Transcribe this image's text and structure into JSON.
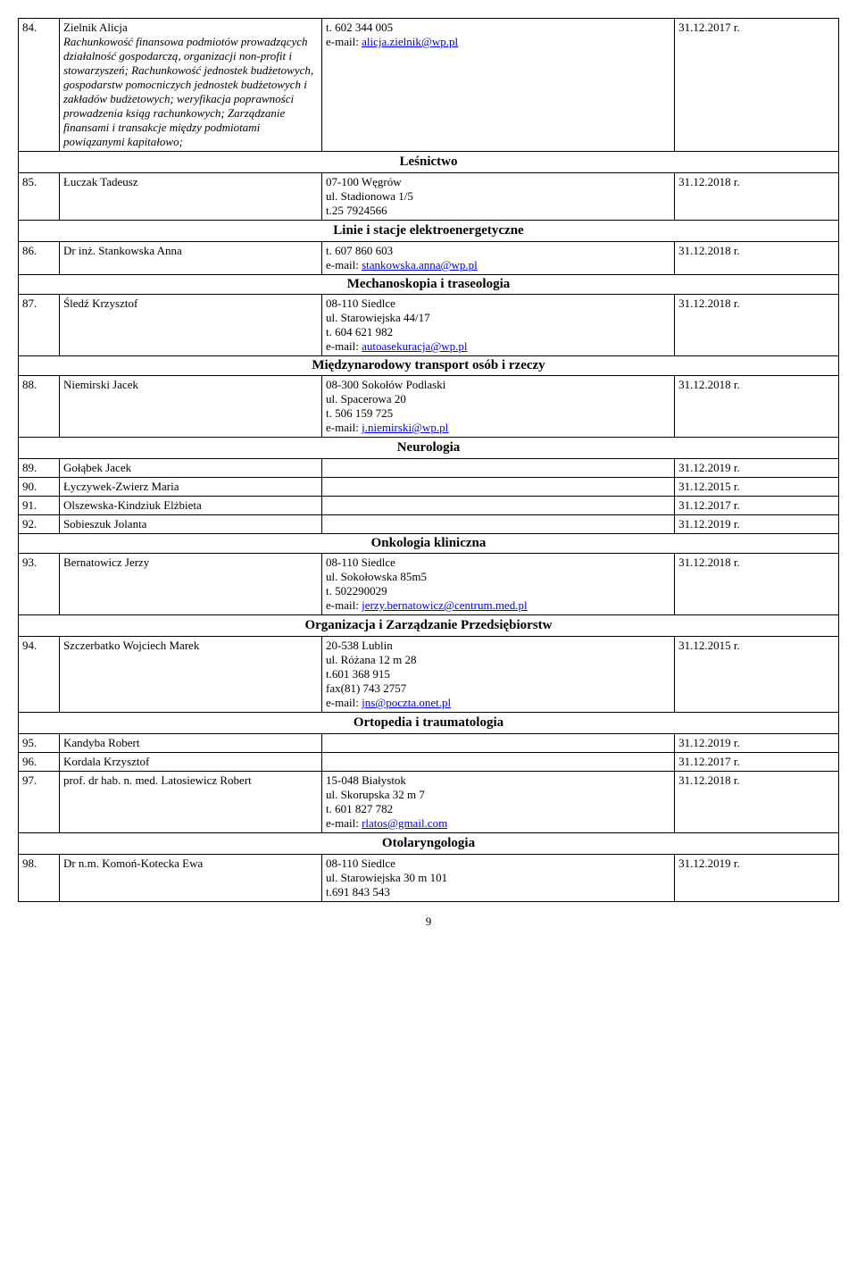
{
  "rows": [
    {
      "num": "84.",
      "name_main": "Zielnik Alicja",
      "name_detail_italic": "Rachunkowość finansowa podmiotów prowadzących działalność gospodarczą, organizacji non-profit i stowarzyszeń; Rachunkowość jednostek budżetowych, gospodarstw pomocniczych jednostek budżetowych i zakładów budżetowych; weryfikacja poprawności prowadzenia ksiąg rachunkowych; Zarządzanie finansami i transakcje między podmiotami powiązanymi kapitałowo;",
      "contact_lines": [
        "t. 602 344 005",
        "e-mail: "
      ],
      "contact_email": "alicja.zielnik@wp.pl",
      "date": "31.12.2017 r."
    }
  ],
  "sections": [
    {
      "title": "Leśnictwo",
      "rows": [
        {
          "num": "85.",
          "name": "Łuczak Tadeusz",
          "contact_lines": [
            "07-100 Węgrów",
            "ul. Stadionowa 1/5",
            "t.25 7924566"
          ],
          "date": "31.12.2018 r."
        }
      ]
    },
    {
      "title": "Linie i stacje elektroenergetyczne",
      "rows": [
        {
          "num": "86.",
          "name": "Dr inż. Stankowska Anna",
          "contact_lines": [
            "t. 607 860 603",
            "e-mail: "
          ],
          "email": "stankowska.anna@wp.pl",
          "date": "31.12.2018 r."
        }
      ],
      "subsections": [
        {
          "title": "Mechanoskopia i traseologia",
          "rows": [
            {
              "num": "87.",
              "name": "Śledź Krzysztof",
              "contact_lines": [
                "08-110 Siedlce",
                "ul. Starowiejska 44/17",
                "t. 604 621 982",
                "e-mail: "
              ],
              "email": "autoasekuracja@wp.pl",
              "date": "31.12.2018 r."
            }
          ]
        },
        {
          "title": "Międzynarodowy transport osób i rzeczy",
          "rows": [
            {
              "num": "88.",
              "name": "Niemirski Jacek",
              "contact_lines": [
                "08-300 Sokołów Podlaski",
                "ul. Spacerowa 20",
                "t. 506 159 725",
                "e-mail: "
              ],
              "email": "j.niemirski@wp.pl",
              "date": "31.12.2018 r."
            }
          ]
        }
      ]
    },
    {
      "title": "Neurologia",
      "rows": [
        {
          "num": "89.",
          "name": "Gołąbek Jacek",
          "contact_lines": [],
          "date": "31.12.2019 r."
        },
        {
          "num": "90.",
          "name": "Łyczywek-Zwierz Maria",
          "contact_lines": [],
          "date": "31.12.2015 r."
        },
        {
          "num": "91.",
          "name": "Olszewska-Kindziuk Elżbieta",
          "contact_lines": [],
          "date": "31.12.2017 r."
        },
        {
          "num": "92.",
          "name": "Sobieszuk Jolanta",
          "contact_lines": [],
          "date": "31.12.2019 r."
        }
      ],
      "subsections": [
        {
          "title": "Onkologia kliniczna",
          "rows": [
            {
              "num": "93.",
              "name": "Bernatowicz Jerzy",
              "contact_lines": [
                "08-110 Siedlce",
                "ul. Sokołowska 85m5",
                "t. 502290029",
                "e-mail: "
              ],
              "email": "jerzy.bernatowicz@centrum.med.pl",
              "date": "31.12.2018 r."
            }
          ]
        }
      ]
    },
    {
      "title": "Organizacja i Zarządzanie Przedsiębiorstw",
      "rows": [
        {
          "num": "94.",
          "name": "Szczerbatko Wojciech Marek",
          "contact_lines": [
            "20-538 Lublin",
            "ul. Różana 12 m 28",
            "t.601 368 915",
            "fax(81) 743 2757",
            "e-mail: "
          ],
          "email": "jns@poczta.onet.pl",
          "date": "31.12.2015 r."
        }
      ]
    },
    {
      "title": "Ortopedia i traumatologia",
      "rows": [
        {
          "num": "95.",
          "name": "Kandyba Robert",
          "contact_lines": [],
          "date": "31.12.2019 r."
        },
        {
          "num": "96.",
          "name": "Kordala Krzysztof",
          "contact_lines": [],
          "date": "31.12.2017 r."
        },
        {
          "num": "97.",
          "name": "prof. dr hab. n. med. Latosiewicz Robert",
          "contact_lines": [
            "15-048 Białystok",
            "ul. Skorupska 32 m 7",
            "t. 601 827 782",
            "e-mail: "
          ],
          "email": "rlatos@gmail.com",
          "date": "31.12.2018 r."
        }
      ]
    },
    {
      "title": "Otolaryngologia",
      "rows": [
        {
          "num": "98.",
          "name": "Dr n.m. Komoń-Kotecka Ewa",
          "contact_lines": [
            "08-110 Siedlce",
            "ul. Starowiejska 30 m 101",
            "t.691 843 543"
          ],
          "date": "31.12.2019 r."
        }
      ]
    }
  ],
  "page_number": "9"
}
